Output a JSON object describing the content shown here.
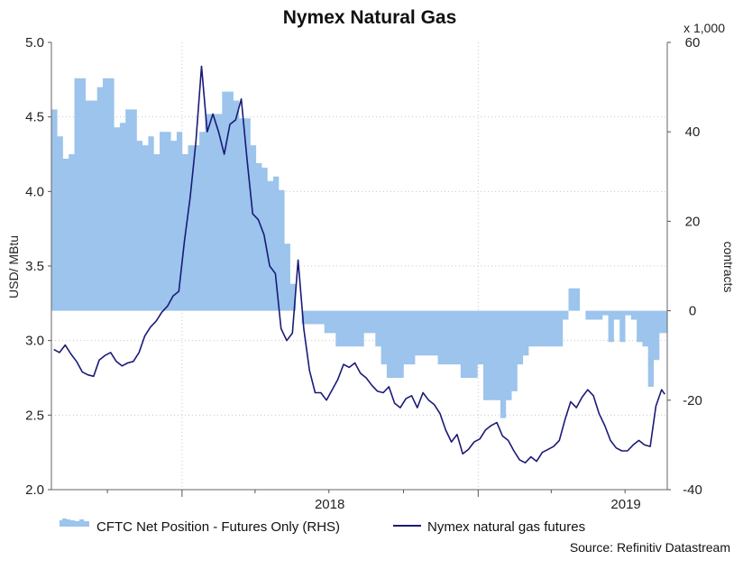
{
  "chart_data": {
    "type": "line",
    "title": "Nymex Natural Gas",
    "ylabel_left": "USD/ MBtu",
    "ylabel_right": "contracts",
    "right_axis_multiplier": "x 1,000",
    "ylim_left": [
      2.0,
      5.0
    ],
    "yticks_left": [
      "2.0",
      "2.5",
      "3.0",
      "3.5",
      "4.0",
      "4.5",
      "5.0"
    ],
    "ylim_right": [
      -40,
      60
    ],
    "yticks_right": [
      "-40",
      "-20",
      "0",
      "20",
      "40",
      "60"
    ],
    "x_tick_labels": [
      "2018",
      "2019"
    ],
    "grid": true,
    "legend_placement": "bottom",
    "source": "Source: Refinitiv Datastream",
    "colors": {
      "area": "#9cc4ec",
      "line": "#1a1a78"
    },
    "series": [
      {
        "name": "CFTC Net Position - Futures Only (RHS)",
        "type": "area",
        "axis": "right",
        "x": [
          "2017-07-28",
          "2017-08-04",
          "2017-08-11",
          "2017-08-18",
          "2017-08-25",
          "2017-09-01",
          "2017-09-08",
          "2017-09-15",
          "2017-09-22",
          "2017-09-29",
          "2017-10-06",
          "2017-10-13",
          "2017-10-20",
          "2017-10-27",
          "2017-11-03",
          "2017-11-10",
          "2017-11-17",
          "2017-11-24",
          "2017-12-01",
          "2017-12-08",
          "2017-12-15",
          "2017-12-22",
          "2017-12-29",
          "2018-01-05",
          "2018-01-12",
          "2018-01-19",
          "2018-01-26",
          "2018-02-02",
          "2018-02-09",
          "2018-02-16",
          "2018-02-23",
          "2018-03-02",
          "2018-03-09",
          "2018-03-16",
          "2018-03-23",
          "2018-03-30",
          "2018-04-06",
          "2018-04-13",
          "2018-04-20",
          "2018-04-27",
          "2018-05-04",
          "2018-05-11",
          "2018-05-18",
          "2018-05-25",
          "2018-06-01",
          "2018-06-08",
          "2018-06-15",
          "2018-06-22",
          "2018-06-29",
          "2018-07-06",
          "2018-07-13",
          "2018-07-20",
          "2018-07-27",
          "2018-08-03",
          "2018-08-10",
          "2018-08-17",
          "2018-08-24",
          "2018-08-31",
          "2018-09-07",
          "2018-09-14",
          "2018-09-21",
          "2018-09-28",
          "2018-10-05",
          "2018-10-12",
          "2018-10-19",
          "2018-10-26",
          "2018-11-02",
          "2018-11-09",
          "2018-11-16",
          "2018-11-23",
          "2018-11-30",
          "2018-12-07",
          "2018-12-14",
          "2018-12-21",
          "2018-12-28",
          "2019-01-04",
          "2019-01-11",
          "2019-01-18",
          "2019-01-25",
          "2019-02-01",
          "2019-02-08",
          "2019-02-15",
          "2019-02-22",
          "2019-03-01",
          "2019-03-08",
          "2019-03-15",
          "2019-03-22",
          "2019-03-29",
          "2019-04-05",
          "2019-04-12",
          "2019-04-19",
          "2019-04-26",
          "2019-05-03",
          "2019-05-10",
          "2019-05-17",
          "2019-05-24",
          "2019-05-31",
          "2019-06-07",
          "2019-06-14",
          "2019-06-21",
          "2019-06-28",
          "2019-07-05",
          "2019-07-12",
          "2019-07-19",
          "2019-07-26",
          "2019-08-02",
          "2019-08-09",
          "2019-08-16"
        ],
        "values": [
          45,
          39,
          34,
          35,
          52,
          52,
          47,
          47,
          50,
          52,
          52,
          41,
          42,
          45,
          45,
          38,
          37,
          39,
          35,
          40,
          40,
          38,
          40,
          35,
          37,
          37,
          40,
          44,
          44,
          44,
          49,
          49,
          47,
          43,
          43,
          37,
          33,
          32,
          29,
          30,
          27,
          15,
          6,
          0,
          -3,
          -3,
          -3,
          -3,
          -5,
          -5,
          -8,
          -8,
          -8,
          -8,
          -8,
          -5,
          -5,
          -8,
          -12,
          -15,
          -15,
          -15,
          -12,
          -12,
          -10,
          -10,
          -10,
          -10,
          -12,
          -12,
          -12,
          -12,
          -15,
          -15,
          -15,
          -12,
          -20,
          -20,
          -20,
          -24,
          -20,
          -18,
          -12,
          -10,
          -8,
          -8,
          -8,
          -8,
          -8,
          -8,
          -2,
          5,
          5,
          0,
          -2,
          -2,
          -2,
          -1,
          -7,
          -2,
          -7,
          -1,
          -2,
          -7,
          -8,
          -17,
          -11,
          -5
        ]
      },
      {
        "name": "Nymex natural gas futures",
        "type": "line",
        "axis": "left",
        "x": [
          "2017-07-27",
          "2017-08-03",
          "2017-08-10",
          "2017-08-17",
          "2017-08-24",
          "2017-08-31",
          "2017-09-07",
          "2017-09-14",
          "2017-09-21",
          "2017-09-28",
          "2017-10-05",
          "2017-10-12",
          "2017-10-19",
          "2017-10-26",
          "2017-11-02",
          "2017-11-09",
          "2017-11-16",
          "2017-11-23",
          "2017-11-30",
          "2017-12-07",
          "2017-12-14",
          "2017-12-21",
          "2017-12-28",
          "2018-01-04",
          "2018-01-11",
          "2018-01-18",
          "2018-01-25",
          "2018-02-01",
          "2018-02-08",
          "2018-02-15",
          "2018-02-22",
          "2018-03-01",
          "2018-03-08",
          "2018-03-15",
          "2018-03-22",
          "2018-03-29",
          "2018-04-05",
          "2018-04-12",
          "2018-04-19",
          "2018-04-26",
          "2018-05-03",
          "2018-05-10",
          "2018-05-17",
          "2018-05-24",
          "2018-05-31",
          "2018-06-07",
          "2018-06-14",
          "2018-06-21",
          "2018-06-28",
          "2018-07-05",
          "2018-07-12",
          "2018-07-19",
          "2018-07-26",
          "2018-08-02",
          "2018-08-09",
          "2018-08-16",
          "2018-08-23",
          "2018-08-30",
          "2018-09-06",
          "2018-09-13",
          "2018-09-20",
          "2018-09-27",
          "2018-10-04",
          "2018-10-11",
          "2018-10-18",
          "2018-10-25",
          "2018-11-01",
          "2018-11-08",
          "2018-11-15",
          "2018-11-22",
          "2018-11-29",
          "2018-12-06",
          "2018-12-13",
          "2018-12-20",
          "2018-12-27",
          "2019-01-03",
          "2019-01-10",
          "2019-01-17",
          "2019-01-24",
          "2019-01-31",
          "2019-02-07",
          "2019-02-14",
          "2019-02-21",
          "2019-02-28",
          "2019-03-07",
          "2019-03-14",
          "2019-03-21",
          "2019-03-28",
          "2019-04-04",
          "2019-04-11",
          "2019-04-18",
          "2019-04-25",
          "2019-05-02",
          "2019-05-09",
          "2019-05-16",
          "2019-05-23",
          "2019-05-30",
          "2019-06-06",
          "2019-06-13",
          "2019-06-20",
          "2019-06-27",
          "2019-07-04",
          "2019-07-11",
          "2019-07-18",
          "2019-07-25",
          "2019-08-01",
          "2019-08-08",
          "2019-08-15",
          "2019-08-19"
        ],
        "values": [
          2.94,
          2.92,
          2.97,
          2.91,
          2.86,
          2.79,
          2.77,
          2.76,
          2.87,
          2.9,
          2.92,
          2.86,
          2.83,
          2.85,
          2.86,
          2.92,
          3.03,
          3.09,
          3.13,
          3.19,
          3.23,
          3.3,
          3.33,
          3.67,
          3.96,
          4.33,
          4.84,
          4.4,
          4.52,
          4.4,
          4.25,
          4.45,
          4.48,
          4.62,
          4.22,
          3.85,
          3.81,
          3.71,
          3.5,
          3.45,
          3.08,
          3.0,
          3.05,
          3.54,
          3.08,
          2.8,
          2.65,
          2.65,
          2.6,
          2.67,
          2.74,
          2.84,
          2.82,
          2.85,
          2.78,
          2.75,
          2.7,
          2.66,
          2.65,
          2.69,
          2.58,
          2.55,
          2.61,
          2.63,
          2.55,
          2.65,
          2.6,
          2.57,
          2.51,
          2.4,
          2.32,
          2.37,
          2.24,
          2.27,
          2.32,
          2.34,
          2.4,
          2.43,
          2.45,
          2.36,
          2.33,
          2.26,
          2.2,
          2.18,
          2.22,
          2.19,
          2.25,
          2.27,
          2.29,
          2.33,
          2.47,
          2.59,
          2.55,
          2.62,
          2.67,
          2.63,
          2.51,
          2.43,
          2.33,
          2.28,
          2.26,
          2.26,
          2.3,
          2.33,
          2.3,
          2.29,
          2.56,
          2.67,
          2.64
        ]
      }
    ]
  }
}
